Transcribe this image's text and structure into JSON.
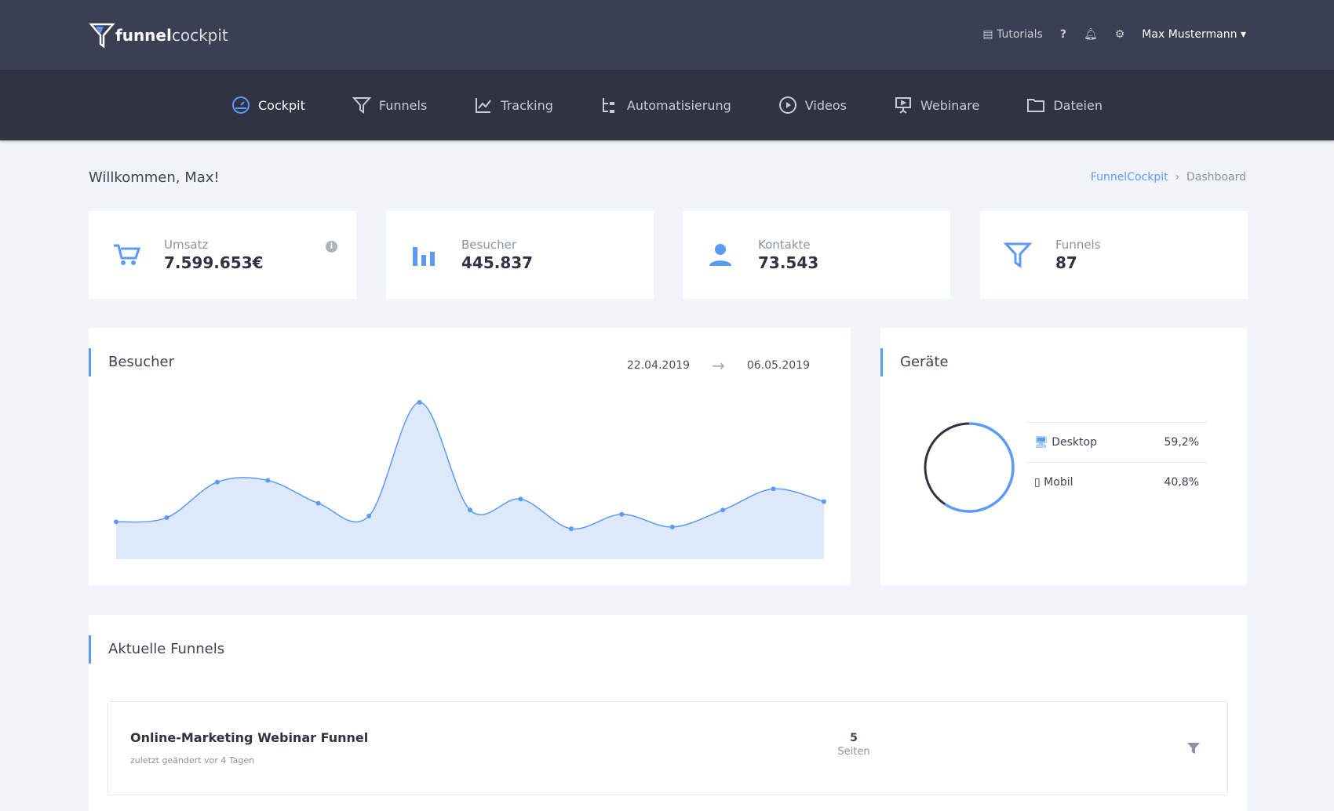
{
  "brand": {
    "bold": "funnel",
    "light": "cockpit"
  },
  "topbar": {
    "tutorials": "Tutorials",
    "help_icon": "question-icon",
    "notifications_icon": "bell-icon",
    "settings_icon": "gear-icon",
    "user": "Max Mustermann"
  },
  "nav": [
    {
      "label": "Cockpit",
      "icon": "gauge-icon",
      "active": true
    },
    {
      "label": "Funnels",
      "icon": "funnel-icon"
    },
    {
      "label": "Tracking",
      "icon": "line-chart-icon"
    },
    {
      "label": "Automatisierung",
      "icon": "flow-icon"
    },
    {
      "label": "Videos",
      "icon": "play-icon"
    },
    {
      "label": "Webinare",
      "icon": "presentation-icon"
    },
    {
      "label": "Dateien",
      "icon": "folder-icon"
    }
  ],
  "welcome": "Willkommen, Max!",
  "breadcrumb": {
    "root": "FunnelCockpit",
    "sep": "›",
    "current": "Dashboard"
  },
  "stats": [
    {
      "label": "Umsatz",
      "value": "7.599.653€",
      "icon": "cart-icon"
    },
    {
      "label": "Besucher",
      "value": "445.837",
      "icon": "bar-chart-icon"
    },
    {
      "label": "Kontakte",
      "value": "73.543",
      "icon": "user-icon"
    },
    {
      "label": "Funnels",
      "value": "87",
      "icon": "funnel-icon"
    }
  ],
  "accent": "#5b9bf5",
  "visitors": {
    "title": "Besucher",
    "from": "22.04.2019",
    "to": "06.05.2019"
  },
  "chart_data": {
    "type": "area",
    "values": [
      44,
      49,
      91,
      93,
      66,
      51,
      185,
      58,
      71,
      36,
      53,
      38,
      58,
      83,
      68
    ],
    "color": "#5b9bf5",
    "grid": false
  },
  "devices": {
    "title": "Geräte",
    "items": [
      {
        "label": "Desktop",
        "value": "59,2%",
        "pct": 59.2,
        "icon": "monitor-icon",
        "color": "#5b9bf5"
      },
      {
        "label": "Mobil",
        "value": "40,8%",
        "pct": 40.8,
        "icon": "phone-icon",
        "color": "#2f3342"
      }
    ]
  },
  "funnels": {
    "title": "Aktuelle Funnels",
    "items": [
      {
        "name": "Online-Marketing Webinar Funnel",
        "sub": "zuletzt geändert vor 4 Tagen",
        "pages": "5",
        "pages_label": "Seiten"
      }
    ]
  }
}
